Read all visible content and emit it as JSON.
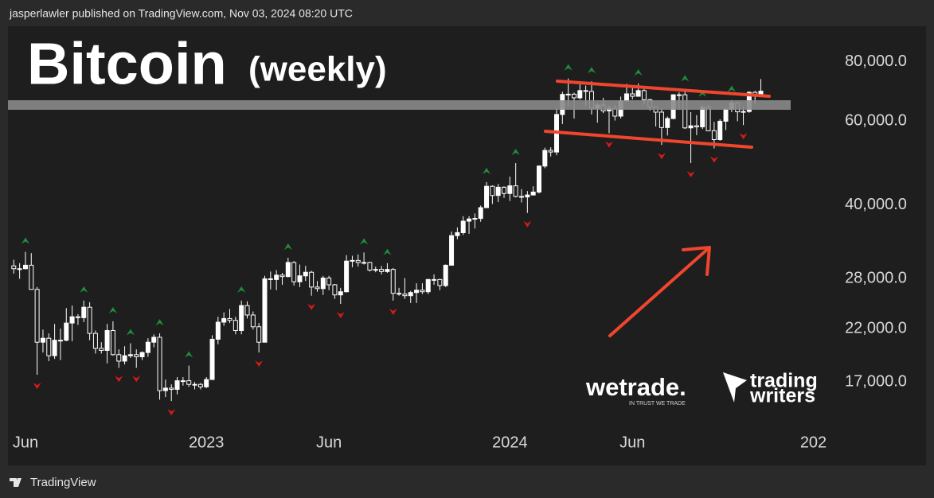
{
  "header": "jasperlawler published on TradingView.com, Nov 03, 2024 08:20 UTC",
  "footer": "TradingView",
  "logos": {
    "wetrade": "wetrade.",
    "wetrade_tagline": "IN TRUST WE TRADE",
    "trading_writers": [
      "trading",
      "writers"
    ]
  },
  "chart_data": {
    "type": "candlestick",
    "title": "Bitcoin",
    "subtitle": "(weekly)",
    "color": "#ffffff",
    "fractals": true,
    "fractal_up_color": "#1f8f3a",
    "fractal_down_color": "#d81b1b",
    "log_scale": true,
    "grid": false,
    "ylim": [
      13500,
      95000
    ],
    "yticks": [
      {
        "value": 17000,
        "label": "17,000.0"
      },
      {
        "value": 22000,
        "label": "22,000.0"
      },
      {
        "value": 28000,
        "label": "28,000.0"
      },
      {
        "value": 40000,
        "label": "40,000.0"
      },
      {
        "value": 60000,
        "label": "60,000.0"
      },
      {
        "value": 80000,
        "label": "80,000.0"
      }
    ],
    "categories": [
      null,
      null,
      "Jun",
      null,
      null,
      null,
      null,
      null,
      null,
      null,
      null,
      null,
      null,
      null,
      null,
      null,
      null,
      null,
      null,
      null,
      null,
      null,
      null,
      null,
      null,
      null,
      null,
      null,
      null,
      null,
      null,
      null,
      null,
      "2023",
      null,
      null,
      null,
      null,
      null,
      null,
      null,
      null,
      null,
      null,
      null,
      null,
      null,
      null,
      null,
      null,
      null,
      null,
      null,
      null,
      "Jun",
      null,
      null,
      null,
      null,
      null,
      null,
      null,
      null,
      null,
      null,
      null,
      null,
      null,
      null,
      null,
      null,
      null,
      null,
      null,
      null,
      null,
      null,
      null,
      null,
      null,
      null,
      null,
      null,
      null,
      null,
      "2024",
      null,
      null,
      null,
      null,
      null,
      null,
      null,
      null,
      null,
      null,
      null,
      null,
      null,
      null,
      null,
      null,
      null,
      null,
      null,
      null,
      "Jun",
      null,
      null,
      null,
      null,
      null,
      null,
      null,
      null,
      null,
      null,
      null,
      null,
      null,
      null,
      null,
      null,
      null,
      null,
      null,
      null,
      null,
      null,
      null,
      null,
      null,
      null,
      null,
      null,
      null,
      null,
      "202"
    ],
    "candles": [
      [
        29800,
        30700,
        28700,
        29400
      ],
      [
        29400,
        30200,
        28000,
        29400
      ],
      [
        29400,
        31900,
        29300,
        29900
      ],
      [
        29900,
        31700,
        26600,
        26600
      ],
      [
        26600,
        26900,
        17600,
        20600
      ],
      [
        20600,
        21900,
        19600,
        21000
      ],
      [
        21000,
        21500,
        18800,
        19300
      ],
      [
        19300,
        22500,
        19000,
        20800
      ],
      [
        20800,
        22000,
        18900,
        20800
      ],
      [
        20800,
        24300,
        20700,
        22600
      ],
      [
        22600,
        24600,
        20700,
        23300
      ],
      [
        23300,
        23600,
        22400,
        23200
      ],
      [
        23200,
        25200,
        22700,
        24400
      ],
      [
        24400,
        25000,
        20800,
        21500
      ],
      [
        21500,
        21800,
        19500,
        20000
      ],
      [
        20000,
        20600,
        19500,
        19800
      ],
      [
        19800,
        22500,
        18600,
        21800
      ],
      [
        21800,
        22800,
        19300,
        19400
      ],
      [
        19400,
        19900,
        18200,
        18800
      ],
      [
        18800,
        20200,
        18500,
        19300
      ],
      [
        19300,
        20500,
        19100,
        19400
      ],
      [
        19400,
        19900,
        18200,
        19200
      ],
      [
        19200,
        19700,
        18900,
        19600
      ],
      [
        19600,
        21000,
        19200,
        20600
      ],
      [
        20600,
        21400,
        20100,
        21100
      ],
      [
        21100,
        21500,
        15600,
        16300
      ],
      [
        16300,
        17200,
        15800,
        16500
      ],
      [
        16500,
        16800,
        15500,
        16400
      ],
      [
        16400,
        17400,
        16000,
        17100
      ],
      [
        17100,
        17400,
        16700,
        17100
      ],
      [
        17100,
        18400,
        16600,
        16800
      ],
      [
        16800,
        17000,
        16400,
        16800
      ],
      [
        16800,
        16900,
        16400,
        16600
      ],
      [
        16600,
        17400,
        16500,
        17200
      ],
      [
        17200,
        21300,
        17200,
        20900
      ],
      [
        20900,
        23300,
        20400,
        22700
      ],
      [
        22700,
        23800,
        22300,
        23100
      ],
      [
        23100,
        24200,
        22600,
        22900
      ],
      [
        22900,
        23300,
        21400,
        21800
      ],
      [
        21800,
        25200,
        21400,
        24600
      ],
      [
        24600,
        25100,
        23100,
        23500
      ],
      [
        23500,
        23900,
        21900,
        22200
      ],
      [
        22200,
        22600,
        19600,
        20600
      ],
      [
        20600,
        28400,
        20600,
        28000
      ],
      [
        28000,
        29000,
        26600,
        27900
      ],
      [
        27900,
        29200,
        26500,
        28500
      ],
      [
        28500,
        28800,
        27200,
        28300
      ],
      [
        28300,
        31000,
        28200,
        30300
      ],
      [
        30300,
        30500,
        27100,
        27600
      ],
      [
        27600,
        30000,
        26900,
        28400
      ],
      [
        28400,
        29800,
        27700,
        28900
      ],
      [
        28900,
        29100,
        25800,
        26900
      ],
      [
        26900,
        27700,
        26300,
        26700
      ],
      [
        26700,
        28400,
        25900,
        28100
      ],
      [
        28100,
        28400,
        26500,
        27200
      ],
      [
        27200,
        27300,
        25400,
        25900
      ],
      [
        25900,
        26800,
        24800,
        26300
      ],
      [
        26300,
        31400,
        26200,
        30500
      ],
      [
        30500,
        31300,
        29600,
        30600
      ],
      [
        30600,
        31500,
        29700,
        30300
      ],
      [
        30300,
        31800,
        30000,
        30300
      ],
      [
        30300,
        30400,
        29000,
        29200
      ],
      [
        29200,
        29700,
        28900,
        29300
      ],
      [
        29300,
        29800,
        28600,
        29000
      ],
      [
        29000,
        30200,
        28800,
        29300
      ],
      [
        29300,
        29500,
        25200,
        26100
      ],
      [
        26100,
        26800,
        25800,
        26000
      ],
      [
        26000,
        28100,
        25400,
        25800
      ],
      [
        25800,
        26400,
        24900,
        26200
      ],
      [
        26200,
        27400,
        24900,
        26500
      ],
      [
        26500,
        27400,
        26000,
        26300
      ],
      [
        26300,
        28000,
        26000,
        27900
      ],
      [
        27900,
        28600,
        27200,
        27900
      ],
      [
        27900,
        28000,
        26500,
        27100
      ],
      [
        27100,
        30000,
        26900,
        29900
      ],
      [
        29900,
        35200,
        29900,
        34500
      ],
      [
        34500,
        35900,
        33900,
        35000
      ],
      [
        35000,
        37900,
        34600,
        37000
      ],
      [
        37000,
        37900,
        34800,
        37400
      ],
      [
        37400,
        38400,
        35700,
        37500
      ],
      [
        37500,
        39900,
        36900,
        39500
      ],
      [
        39500,
        44700,
        39500,
        43800
      ],
      [
        43800,
        44000,
        40200,
        41900
      ],
      [
        41900,
        44300,
        40600,
        43600
      ],
      [
        43600,
        43800,
        41400,
        42300
      ],
      [
        42300,
        45900,
        40800,
        43900
      ],
      [
        43900,
        49000,
        41500,
        41700
      ],
      [
        41700,
        43200,
        40500,
        41600
      ],
      [
        41600,
        42800,
        38500,
        42000
      ],
      [
        42000,
        43800,
        41900,
        42600
      ],
      [
        42600,
        48500,
        42300,
        48300
      ],
      [
        48300,
        52800,
        47800,
        52100
      ],
      [
        52100,
        52900,
        50600,
        51700
      ],
      [
        51700,
        64000,
        50900,
        62000
      ],
      [
        62000,
        69200,
        59200,
        68300
      ],
      [
        68300,
        73800,
        64500,
        68400
      ],
      [
        68400,
        68900,
        60800,
        67200
      ],
      [
        67200,
        71700,
        66600,
        69600
      ],
      [
        69600,
        71300,
        64500,
        69300
      ],
      [
        69300,
        72800,
        62000,
        63900
      ],
      [
        63900,
        65500,
        59600,
        64900
      ],
      [
        64900,
        67200,
        62400,
        63100
      ],
      [
        63100,
        64700,
        56600,
        63900
      ],
      [
        63900,
        64900,
        60200,
        61500
      ],
      [
        61500,
        67600,
        60800,
        66200
      ],
      [
        66200,
        71900,
        66000,
        68500
      ],
      [
        68500,
        70600,
        66700,
        67700
      ],
      [
        67700,
        72000,
        67600,
        69600
      ],
      [
        69600,
        70200,
        65100,
        66600
      ],
      [
        66600,
        66900,
        63200,
        64300
      ],
      [
        64300,
        64300,
        58500,
        62700
      ],
      [
        62700,
        63800,
        53500,
        58200
      ],
      [
        58200,
        61400,
        56000,
        60800
      ],
      [
        60800,
        68400,
        60600,
        68200
      ],
      [
        68200,
        69000,
        63400,
        68200
      ],
      [
        68200,
        70000,
        57800,
        58100
      ],
      [
        58100,
        62700,
        49000,
        58700
      ],
      [
        58700,
        61800,
        56100,
        58400
      ],
      [
        58400,
        65000,
        57800,
        64200
      ],
      [
        64200,
        64900,
        57200,
        57300
      ],
      [
        57300,
        59800,
        52600,
        54900
      ],
      [
        54900,
        60600,
        54600,
        60000
      ],
      [
        60000,
        64100,
        57500,
        63600
      ],
      [
        63600,
        66500,
        62700,
        65600
      ],
      [
        65600,
        66000,
        60000,
        62800
      ],
      [
        62800,
        64500,
        58900,
        62900
      ],
      [
        62900,
        69400,
        62500,
        69000
      ],
      [
        69000,
        69500,
        65100,
        68000
      ],
      [
        68000,
        73600,
        67500,
        69400
      ],
      null,
      null,
      null,
      null,
      null,
      null,
      null,
      null,
      null
    ]
  }
}
